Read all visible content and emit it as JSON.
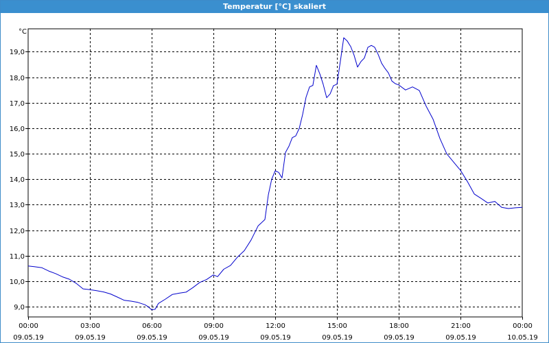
{
  "window": {
    "title": "Temperatur [°C] skaliert"
  },
  "chart_data": {
    "type": "line",
    "title": "Temperatur [°C] skaliert",
    "ylabel": "°C",
    "xlabel": "",
    "ylim": [
      8.6,
      19.9
    ],
    "xlim": [
      0,
      24
    ],
    "grid": true,
    "yticks": [
      9.0,
      10.0,
      11.0,
      12.0,
      13.0,
      14.0,
      15.0,
      16.0,
      17.0,
      18.0,
      19.0
    ],
    "ytick_labels": [
      "9,0",
      "10,0",
      "11,0",
      "12,0",
      "13,0",
      "14,0",
      "15,0",
      "16,0",
      "17,0",
      "18,0",
      "19,0"
    ],
    "xticks": [
      {
        "x": 0,
        "time": "00:00",
        "date": "09.05.19"
      },
      {
        "x": 3,
        "time": "03:00",
        "date": "09.05.19"
      },
      {
        "x": 6,
        "time": "06:00",
        "date": "09.05.19"
      },
      {
        "x": 9,
        "time": "09:00",
        "date": "09.05.19"
      },
      {
        "x": 12,
        "time": "12:00",
        "date": "09.05.19"
      },
      {
        "x": 15,
        "time": "15:00",
        "date": "09.05.19"
      },
      {
        "x": 18,
        "time": "18:00",
        "date": "09.05.19"
      },
      {
        "x": 21,
        "time": "21:00",
        "date": "09.05.19"
      },
      {
        "x": 24,
        "time": "00:00",
        "date": "10.05.19"
      }
    ],
    "line_color": "#0000cc",
    "series": [
      {
        "x": [
          0,
          0.3,
          0.67,
          1,
          1.33,
          1.67,
          2,
          2.33,
          2.67,
          3,
          3.33,
          3.67,
          4,
          4.33,
          4.67,
          5,
          5.33,
          5.67,
          5.83,
          6,
          6.17,
          6.33,
          6.67,
          7,
          7.33,
          7.67,
          8,
          8.33,
          8.67,
          9,
          9.2,
          9.5,
          9.83,
          10.17,
          10.5,
          10.83,
          11.17,
          11.5,
          11.67,
          11.83,
          12,
          12.17,
          12.33,
          12.5,
          12.67,
          12.83,
          13,
          13.17,
          13.33,
          13.5,
          13.67,
          13.83,
          14,
          14.17,
          14.33,
          14.5,
          14.67,
          14.83,
          15,
          15.17,
          15.33,
          15.5,
          15.67,
          15.83,
          16,
          16.17,
          16.33,
          16.5,
          16.67,
          16.83,
          17,
          17.17,
          17.33,
          17.5,
          17.67,
          17.83,
          18,
          18.33,
          18.67,
          19,
          19.33,
          19.67,
          20,
          20.33,
          20.67,
          21,
          21.33,
          21.67,
          22,
          22.33,
          22.67,
          23,
          23.33,
          23.67,
          24
        ],
        "y": [
          10.6,
          10.57,
          10.53,
          10.4,
          10.3,
          10.17,
          10.08,
          9.92,
          9.7,
          9.67,
          9.63,
          9.58,
          9.5,
          9.38,
          9.25,
          9.22,
          9.17,
          9.08,
          9.0,
          8.88,
          8.9,
          9.13,
          9.3,
          9.48,
          9.53,
          9.57,
          9.75,
          9.95,
          10.07,
          10.25,
          10.18,
          10.47,
          10.62,
          10.95,
          11.2,
          11.62,
          12.17,
          12.42,
          13.4,
          14.0,
          14.33,
          14.27,
          14.05,
          15.05,
          15.3,
          15.63,
          15.7,
          16.0,
          16.53,
          17.22,
          17.62,
          17.68,
          18.47,
          18.13,
          17.73,
          17.2,
          17.35,
          17.67,
          17.73,
          18.65,
          19.55,
          19.42,
          19.2,
          18.87,
          18.4,
          18.62,
          18.75,
          19.17,
          19.25,
          19.18,
          18.9,
          18.55,
          18.35,
          18.17,
          17.85,
          17.75,
          17.7,
          17.5,
          17.62,
          17.48,
          16.87,
          16.35,
          15.6,
          15.0,
          14.67,
          14.35,
          13.92,
          13.42,
          13.25,
          13.07,
          13.13,
          12.9,
          12.85,
          12.88,
          12.9
        ]
      }
    ]
  }
}
